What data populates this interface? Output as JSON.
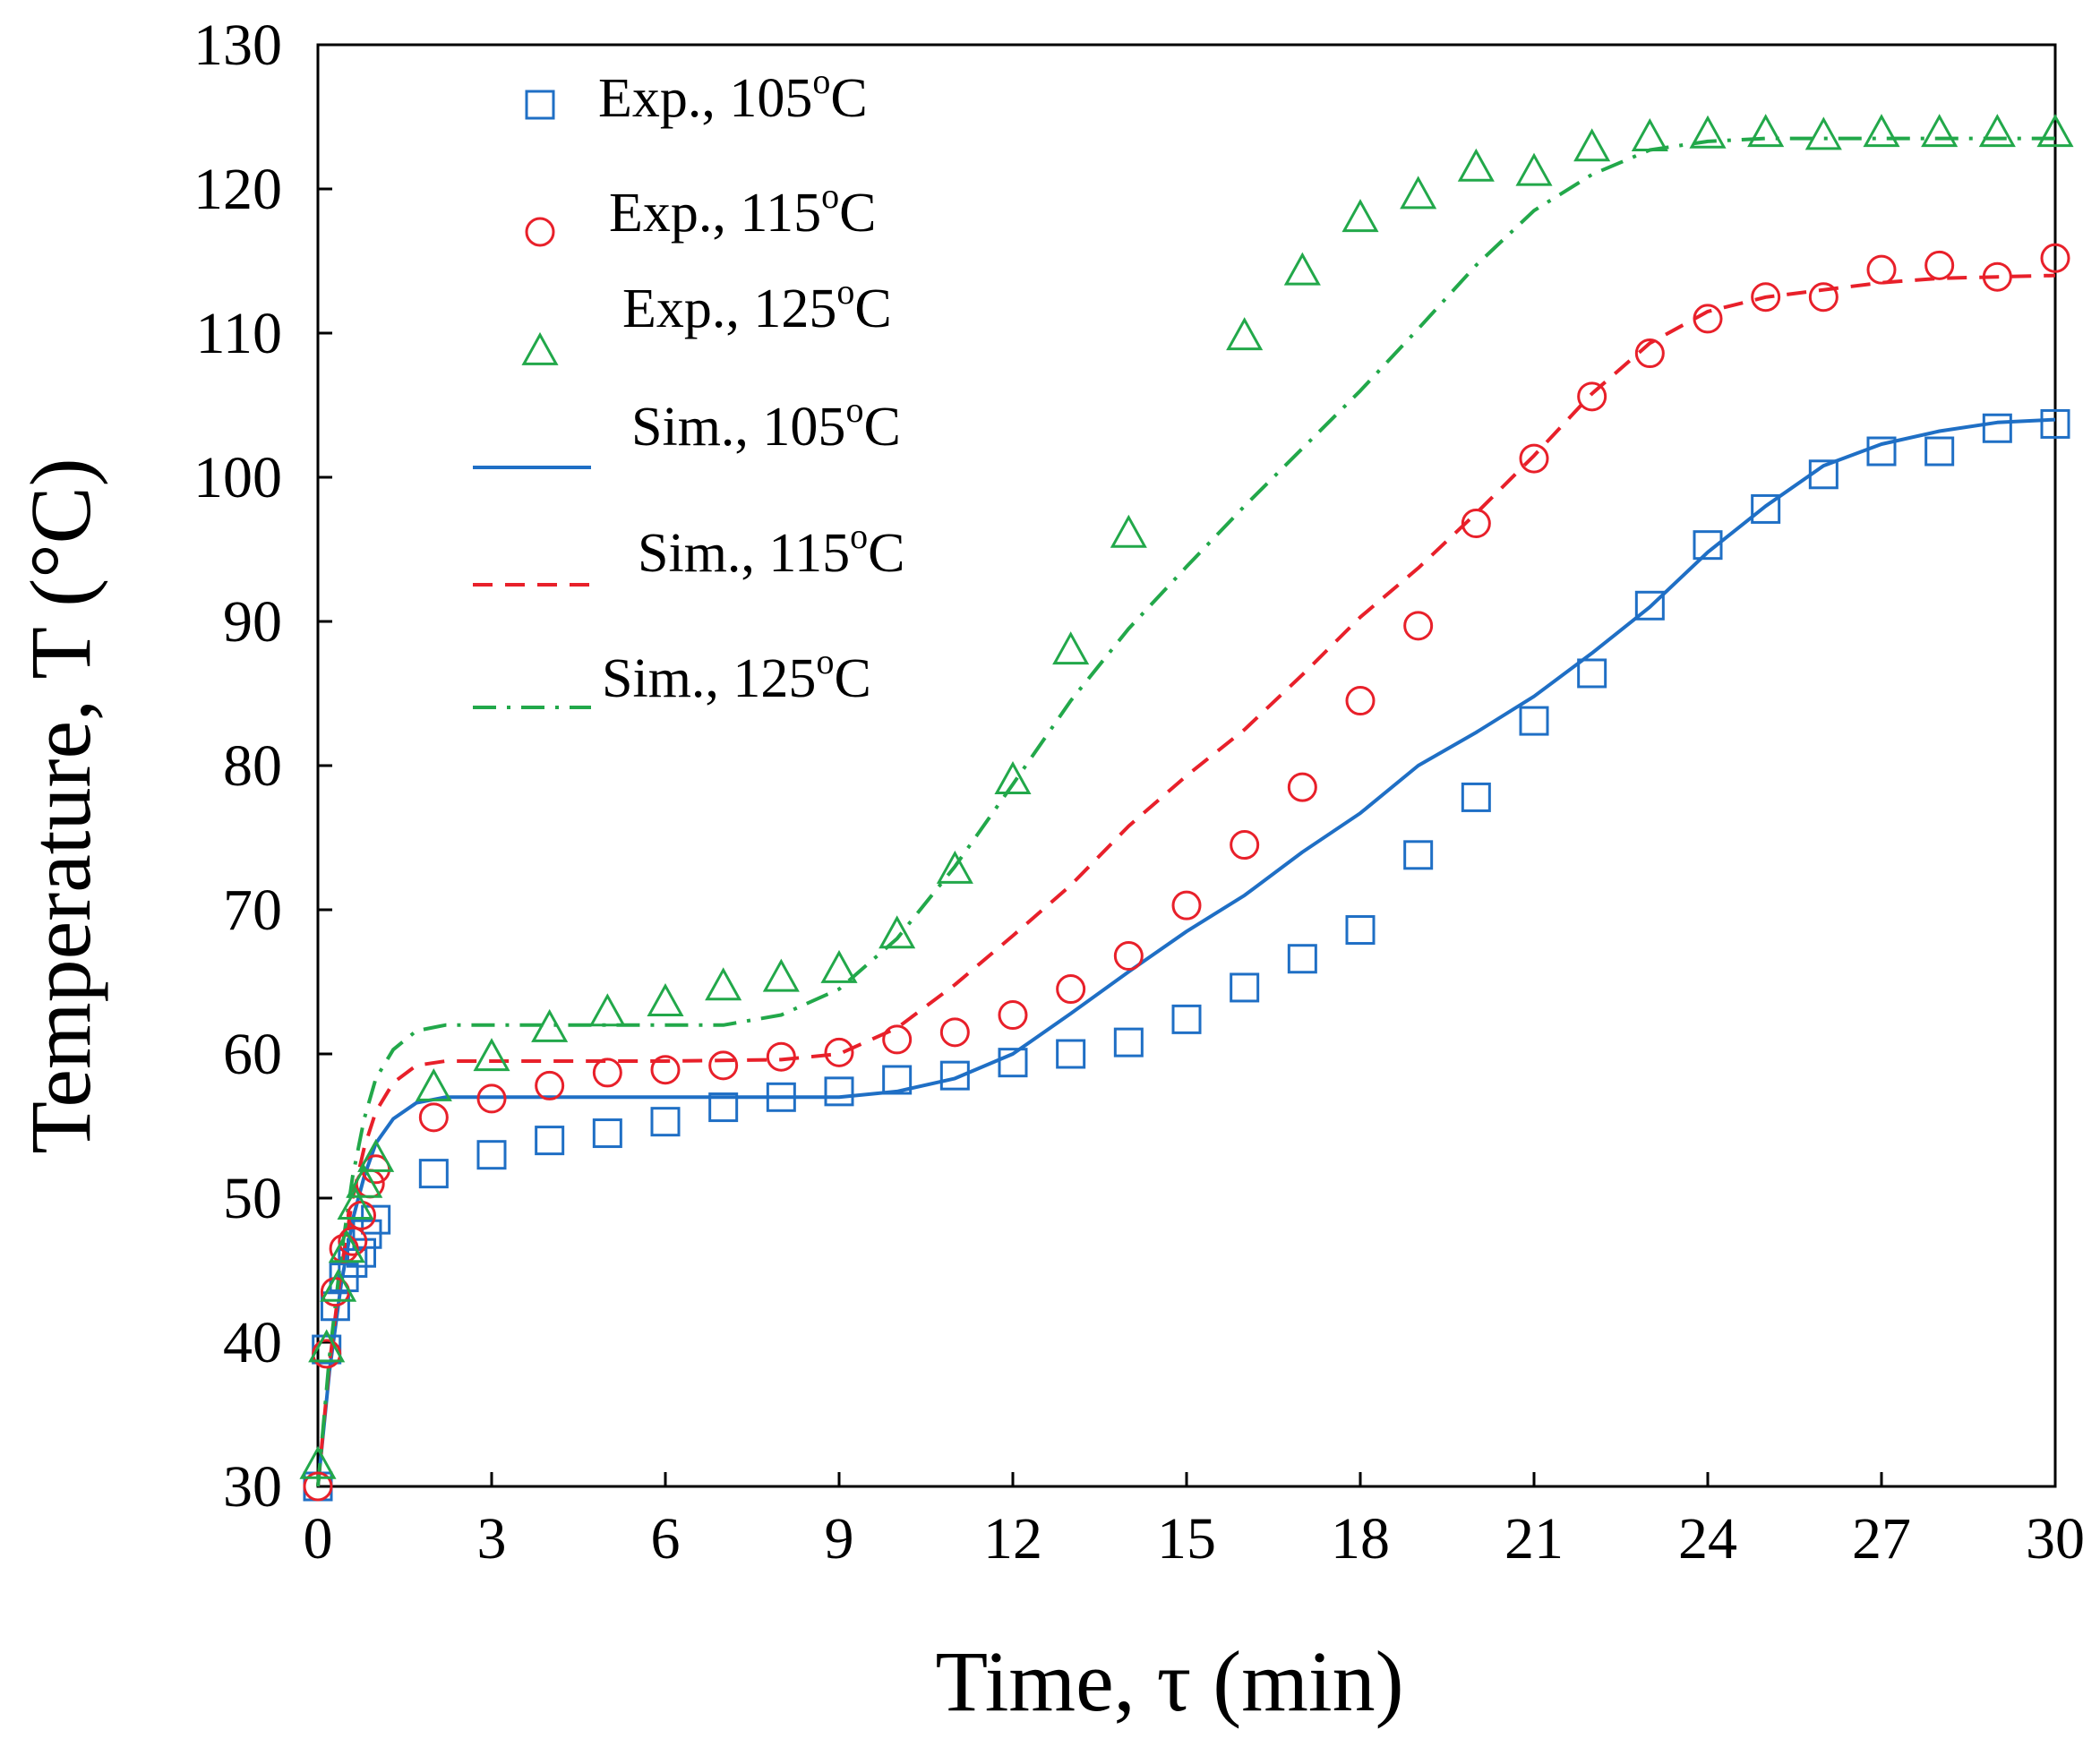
{
  "chart_data": {
    "type": "scatter",
    "xlabel": "Time, τ (min)",
    "ylabel": "Temperature, T (°C)",
    "xlim": [
      0,
      30
    ],
    "ylim": [
      30,
      130
    ],
    "xticks": [
      0,
      3,
      6,
      9,
      12,
      15,
      18,
      21,
      24,
      27,
      30
    ],
    "yticks": [
      30,
      40,
      50,
      60,
      70,
      80,
      90,
      100,
      110,
      120,
      130
    ],
    "grid": false,
    "legend_position": "top-left",
    "series": [
      {
        "name": "Exp., 105oC",
        "label_main": "Exp., 105",
        "label_sup": "o",
        "label_unit": "C",
        "kind": "markers",
        "marker": "square",
        "color": "#1f6fc5",
        "points": [
          [
            0,
            30
          ],
          [
            0.15,
            39.5
          ],
          [
            0.3,
            42.5
          ],
          [
            0.45,
            44.5
          ],
          [
            0.6,
            45.5
          ],
          [
            0.75,
            46.2
          ],
          [
            0.85,
            47.5
          ],
          [
            1,
            48.5
          ],
          [
            2,
            51.7
          ],
          [
            3,
            53
          ],
          [
            4,
            54
          ],
          [
            5,
            54.5
          ],
          [
            6,
            55.3
          ],
          [
            7,
            56.3
          ],
          [
            8,
            57
          ],
          [
            9,
            57.4
          ],
          [
            10,
            58.2
          ],
          [
            11,
            58.5
          ],
          [
            12,
            59.4
          ],
          [
            13,
            60
          ],
          [
            14,
            60.8
          ],
          [
            15,
            62.4
          ],
          [
            16,
            64.6
          ],
          [
            17,
            66.6
          ],
          [
            18,
            68.6
          ],
          [
            19,
            73.8
          ],
          [
            20,
            77.8
          ],
          [
            21,
            83.1
          ],
          [
            22,
            86.4
          ],
          [
            23,
            91.1
          ],
          [
            24,
            95.3
          ],
          [
            25,
            97.8
          ],
          [
            26,
            100.2
          ],
          [
            27,
            101.8
          ],
          [
            28,
            101.8
          ],
          [
            29,
            103.4
          ],
          [
            30,
            103.7
          ]
        ]
      },
      {
        "name": "Exp., 115oC",
        "label_main": "Exp., 115",
        "label_sup": "o",
        "label_unit": "C",
        "kind": "markers",
        "marker": "circle",
        "color": "#e8202a",
        "points": [
          [
            0,
            30
          ],
          [
            0.15,
            39.2
          ],
          [
            0.3,
            43.5
          ],
          [
            0.45,
            46.5
          ],
          [
            0.6,
            47
          ],
          [
            0.75,
            48.8
          ],
          [
            0.9,
            51
          ],
          [
            1,
            52
          ],
          [
            2,
            55.6
          ],
          [
            3,
            56.9
          ],
          [
            4,
            57.8
          ],
          [
            5,
            58.7
          ],
          [
            6,
            58.9
          ],
          [
            7,
            59.2
          ],
          [
            8,
            59.8
          ],
          [
            9,
            60.1
          ],
          [
            10,
            61
          ],
          [
            11,
            61.5
          ],
          [
            12,
            62.7
          ],
          [
            13,
            64.5
          ],
          [
            14,
            66.8
          ],
          [
            15,
            70.3
          ],
          [
            16,
            74.5
          ],
          [
            17,
            78.5
          ],
          [
            18,
            84.5
          ],
          [
            19,
            89.7
          ],
          [
            20,
            96.8
          ],
          [
            21,
            101.3
          ],
          [
            22,
            105.6
          ],
          [
            23,
            108.6
          ],
          [
            24,
            111
          ],
          [
            25,
            112.5
          ],
          [
            26,
            112.5
          ],
          [
            27,
            114.4
          ],
          [
            28,
            114.7
          ],
          [
            29,
            113.9
          ],
          [
            30,
            115.2
          ]
        ]
      },
      {
        "name": "Exp., 125oC",
        "label_main": "Exp., 125",
        "label_sup": "o",
        "label_unit": "C",
        "kind": "markers",
        "marker": "triangle",
        "color": "#22a84a",
        "points": [
          [
            0,
            31.5
          ],
          [
            0.15,
            39.6
          ],
          [
            0.35,
            43.8
          ],
          [
            0.5,
            46.5
          ],
          [
            0.65,
            49.5
          ],
          [
            0.8,
            51
          ],
          [
            1,
            52.8
          ],
          [
            2,
            57.7
          ],
          [
            3,
            59.8
          ],
          [
            4,
            61.8
          ],
          [
            5,
            62.9
          ],
          [
            6,
            63.6
          ],
          [
            7,
            64.7
          ],
          [
            8,
            65.3
          ],
          [
            9,
            65.9
          ],
          [
            10,
            68.3
          ],
          [
            11,
            72.8
          ],
          [
            12,
            79
          ],
          [
            13,
            88
          ],
          [
            14,
            96.1
          ],
          [
            16,
            109.8
          ],
          [
            17,
            114.3
          ],
          [
            18,
            118
          ],
          [
            19,
            119.6
          ],
          [
            20,
            121.5
          ],
          [
            21,
            121.2
          ],
          [
            22,
            122.9
          ],
          [
            23,
            123.6
          ],
          [
            24,
            123.8
          ],
          [
            25,
            123.9
          ],
          [
            26,
            123.7
          ],
          [
            27,
            123.9
          ],
          [
            28,
            123.9
          ],
          [
            29,
            123.9
          ],
          [
            30,
            123.9
          ]
        ]
      },
      {
        "name": "Sim., 105oC",
        "label_main": "Sim., 105",
        "label_sup": "o",
        "label_unit": "C",
        "kind": "line",
        "dash": "solid",
        "color": "#1f6fc5",
        "points": [
          [
            0,
            30
          ],
          [
            0.2,
            38
          ],
          [
            0.4,
            44
          ],
          [
            0.6,
            48.5
          ],
          [
            0.8,
            51.5
          ],
          [
            1,
            53.8
          ],
          [
            1.3,
            55.5
          ],
          [
            1.7,
            56.6
          ],
          [
            2.2,
            57
          ],
          [
            3,
            57
          ],
          [
            5,
            57
          ],
          [
            7,
            57
          ],
          [
            9,
            57
          ],
          [
            10,
            57.4
          ],
          [
            11,
            58.3
          ],
          [
            12,
            60
          ],
          [
            13,
            62.8
          ],
          [
            14,
            65.7
          ],
          [
            15,
            68.5
          ],
          [
            16,
            71
          ],
          [
            17,
            74
          ],
          [
            18,
            76.7
          ],
          [
            19,
            80
          ],
          [
            20,
            82.3
          ],
          [
            21,
            84.8
          ],
          [
            22,
            87.8
          ],
          [
            23,
            91
          ],
          [
            24,
            94.8
          ],
          [
            25,
            98
          ],
          [
            26,
            100.8
          ],
          [
            27,
            102.3
          ],
          [
            28,
            103.2
          ],
          [
            29,
            103.8
          ],
          [
            30,
            104
          ]
        ]
      },
      {
        "name": "Sim., 115oC",
        "label_main": "Sim., 115",
        "label_sup": "o",
        "label_unit": "C",
        "kind": "line",
        "dash": "dashed",
        "color": "#e8202a",
        "points": [
          [
            0,
            30
          ],
          [
            0.2,
            38.5
          ],
          [
            0.4,
            45
          ],
          [
            0.6,
            50
          ],
          [
            0.8,
            53.5
          ],
          [
            1,
            56
          ],
          [
            1.3,
            58
          ],
          [
            1.7,
            59.2
          ],
          [
            2.2,
            59.5
          ],
          [
            4,
            59.5
          ],
          [
            6,
            59.5
          ],
          [
            8,
            59.6
          ],
          [
            9,
            60
          ],
          [
            10,
            61.8
          ],
          [
            11,
            64.8
          ],
          [
            12,
            68.2
          ],
          [
            13,
            71.7
          ],
          [
            14,
            75.8
          ],
          [
            15,
            79.3
          ],
          [
            16,
            82.5
          ],
          [
            17,
            86.3
          ],
          [
            18,
            90.3
          ],
          [
            19,
            93.7
          ],
          [
            20,
            97.5
          ],
          [
            21,
            101.5
          ],
          [
            22,
            105.8
          ],
          [
            23,
            109.3
          ],
          [
            24,
            111.5
          ],
          [
            25,
            112.5
          ],
          [
            26,
            113
          ],
          [
            27,
            113.5
          ],
          [
            28,
            113.8
          ],
          [
            29,
            113.9
          ],
          [
            30,
            114
          ]
        ]
      },
      {
        "name": "Sim., 125oC",
        "label_main": "Sim., 125",
        "label_sup": "o",
        "label_unit": "C",
        "kind": "line",
        "dash": "dashdot",
        "color": "#22a84a",
        "points": [
          [
            0,
            30
          ],
          [
            0.2,
            39
          ],
          [
            0.4,
            46
          ],
          [
            0.6,
            51.5
          ],
          [
            0.8,
            55.5
          ],
          [
            1,
            58.3
          ],
          [
            1.3,
            60.3
          ],
          [
            1.7,
            61.6
          ],
          [
            2.2,
            62
          ],
          [
            4,
            62
          ],
          [
            6,
            62
          ],
          [
            7,
            62
          ],
          [
            8,
            62.7
          ],
          [
            9,
            64.5
          ],
          [
            10,
            68
          ],
          [
            11,
            73
          ],
          [
            12,
            78.7
          ],
          [
            13,
            84.5
          ],
          [
            14,
            89.5
          ],
          [
            15,
            93.8
          ],
          [
            16,
            98
          ],
          [
            17,
            102
          ],
          [
            18,
            106
          ],
          [
            19,
            110.3
          ],
          [
            20,
            114.7
          ],
          [
            21,
            118.5
          ],
          [
            22,
            121
          ],
          [
            23,
            122.7
          ],
          [
            24,
            123.3
          ],
          [
            25,
            123.5
          ],
          [
            26,
            123.5
          ],
          [
            27,
            123.5
          ],
          [
            28,
            123.5
          ],
          [
            29,
            123.5
          ],
          [
            30,
            123.5
          ]
        ]
      }
    ]
  }
}
